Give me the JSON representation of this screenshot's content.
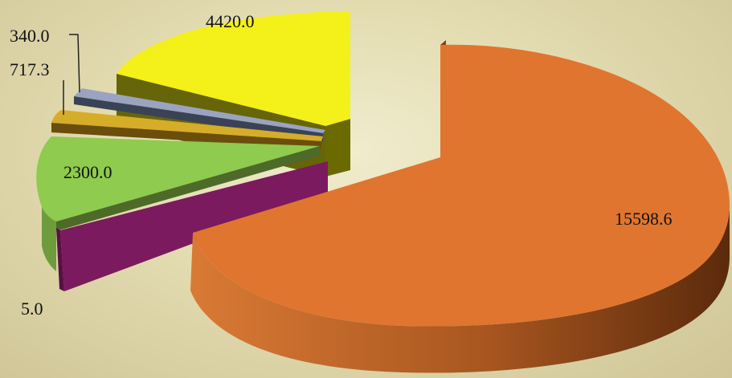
{
  "chart_data": {
    "type": "pie",
    "style": "3d-exploded",
    "slices": [
      {
        "label": "15598.6",
        "value": 15598.6,
        "color": "#e07530"
      },
      {
        "label": "5.0",
        "value": 5.0,
        "color": "#7b1a5e"
      },
      {
        "label": "2300.0",
        "value": 2300.0,
        "color": "#8ecb4e"
      },
      {
        "label": "717.3",
        "value": 717.3,
        "color": "#d6ad28"
      },
      {
        "label": "340.0",
        "value": 340.0,
        "color": "#9aa4c0"
      },
      {
        "label": "4420.0",
        "value": 4420.0,
        "color": "#f4f01a"
      }
    ],
    "legend": false
  }
}
